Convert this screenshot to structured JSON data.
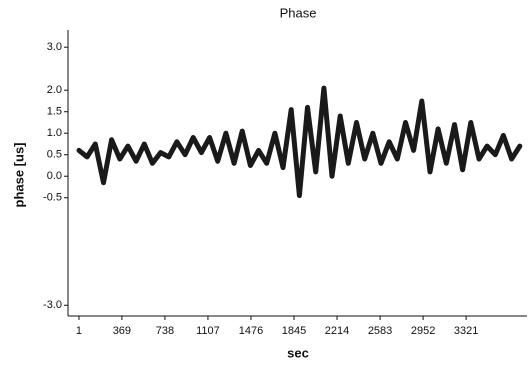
{
  "chart_data": {
    "type": "line",
    "title": "Phase",
    "x_label": "sec",
    "y_label": "phase [us]",
    "x": [
      1,
      71,
      141,
      211,
      281,
      351,
      421,
      491,
      561,
      631,
      701,
      771,
      841,
      911,
      981,
      1051,
      1121,
      1191,
      1261,
      1331,
      1401,
      1471,
      1541,
      1611,
      1681,
      1751,
      1821,
      1891,
      1961,
      2031,
      2101,
      2171,
      2241,
      2311,
      2381,
      2451,
      2521,
      2591,
      2661,
      2731,
      2801,
      2871,
      2941,
      3011,
      3081,
      3151,
      3221,
      3291,
      3361,
      3431,
      3501,
      3571,
      3641,
      3711,
      3781
    ],
    "series": [
      {
        "color": "#1a1a1a",
        "values": [
          0.6,
          0.45,
          0.75,
          -0.15,
          0.85,
          0.4,
          0.7,
          0.35,
          0.75,
          0.3,
          0.55,
          0.45,
          0.8,
          0.5,
          0.9,
          0.55,
          0.9,
          0.35,
          1.0,
          0.3,
          1.05,
          0.25,
          0.6,
          0.3,
          1.0,
          0.2,
          1.55,
          -0.45,
          1.6,
          0.1,
          2.05,
          0.0,
          1.4,
          0.3,
          1.25,
          0.4,
          1.0,
          0.3,
          0.8,
          0.4,
          1.25,
          0.6,
          1.75,
          0.1,
          1.1,
          0.3,
          1.2,
          0.15,
          1.25,
          0.4,
          0.7,
          0.5,
          0.95,
          0.4,
          0.7
        ]
      }
    ],
    "xlim": [
      -93,
      3843
    ],
    "ylim": [
      -3.25,
      3.4
    ],
    "xticks": [
      1,
      369,
      738,
      1107,
      1476,
      1845,
      2214,
      2583,
      2952,
      3321
    ],
    "yticks": [
      {
        "value": -3,
        "label": "-3.0"
      },
      -0.5,
      {
        "value": 0,
        "label": "0.0"
      },
      0.5,
      {
        "value": 1,
        "label": "1.0"
      },
      1.5,
      {
        "value": 2,
        "label": "2.0"
      },
      {
        "value": 3,
        "label": "3.0"
      }
    ]
  }
}
